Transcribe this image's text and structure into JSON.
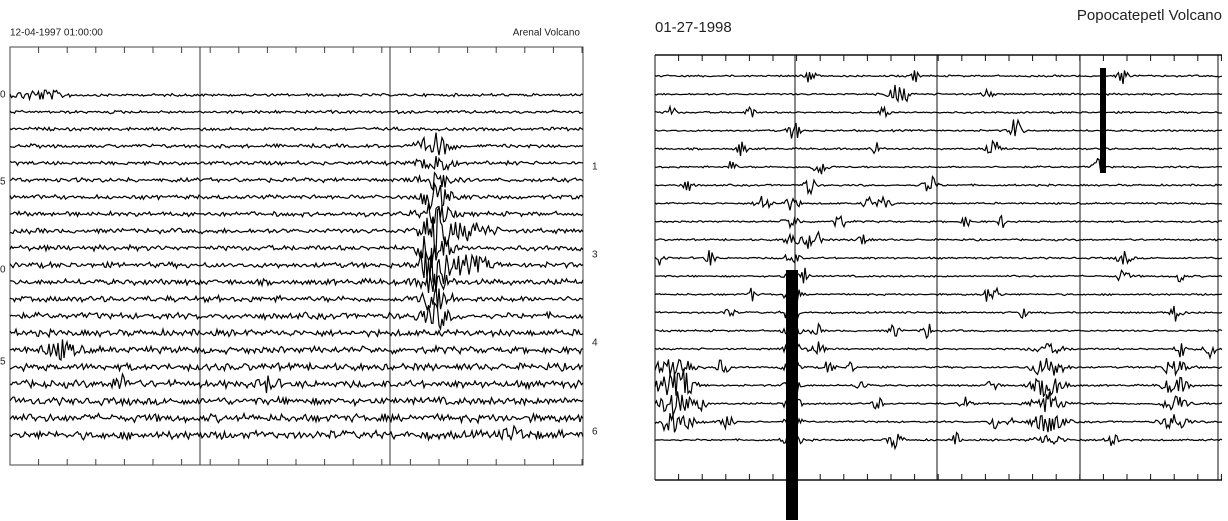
{
  "left_panel": {
    "timestamp": "12-04-1997  01:00:00",
    "title": "Arenal Volcano",
    "left_labels": [
      "0",
      "5",
      "0",
      "5"
    ],
    "right_labels": [
      "1",
      "3",
      "4",
      "6"
    ]
  },
  "right_panel": {
    "date": "01-27-1998",
    "title": "Popocatepetl Volcano"
  }
}
